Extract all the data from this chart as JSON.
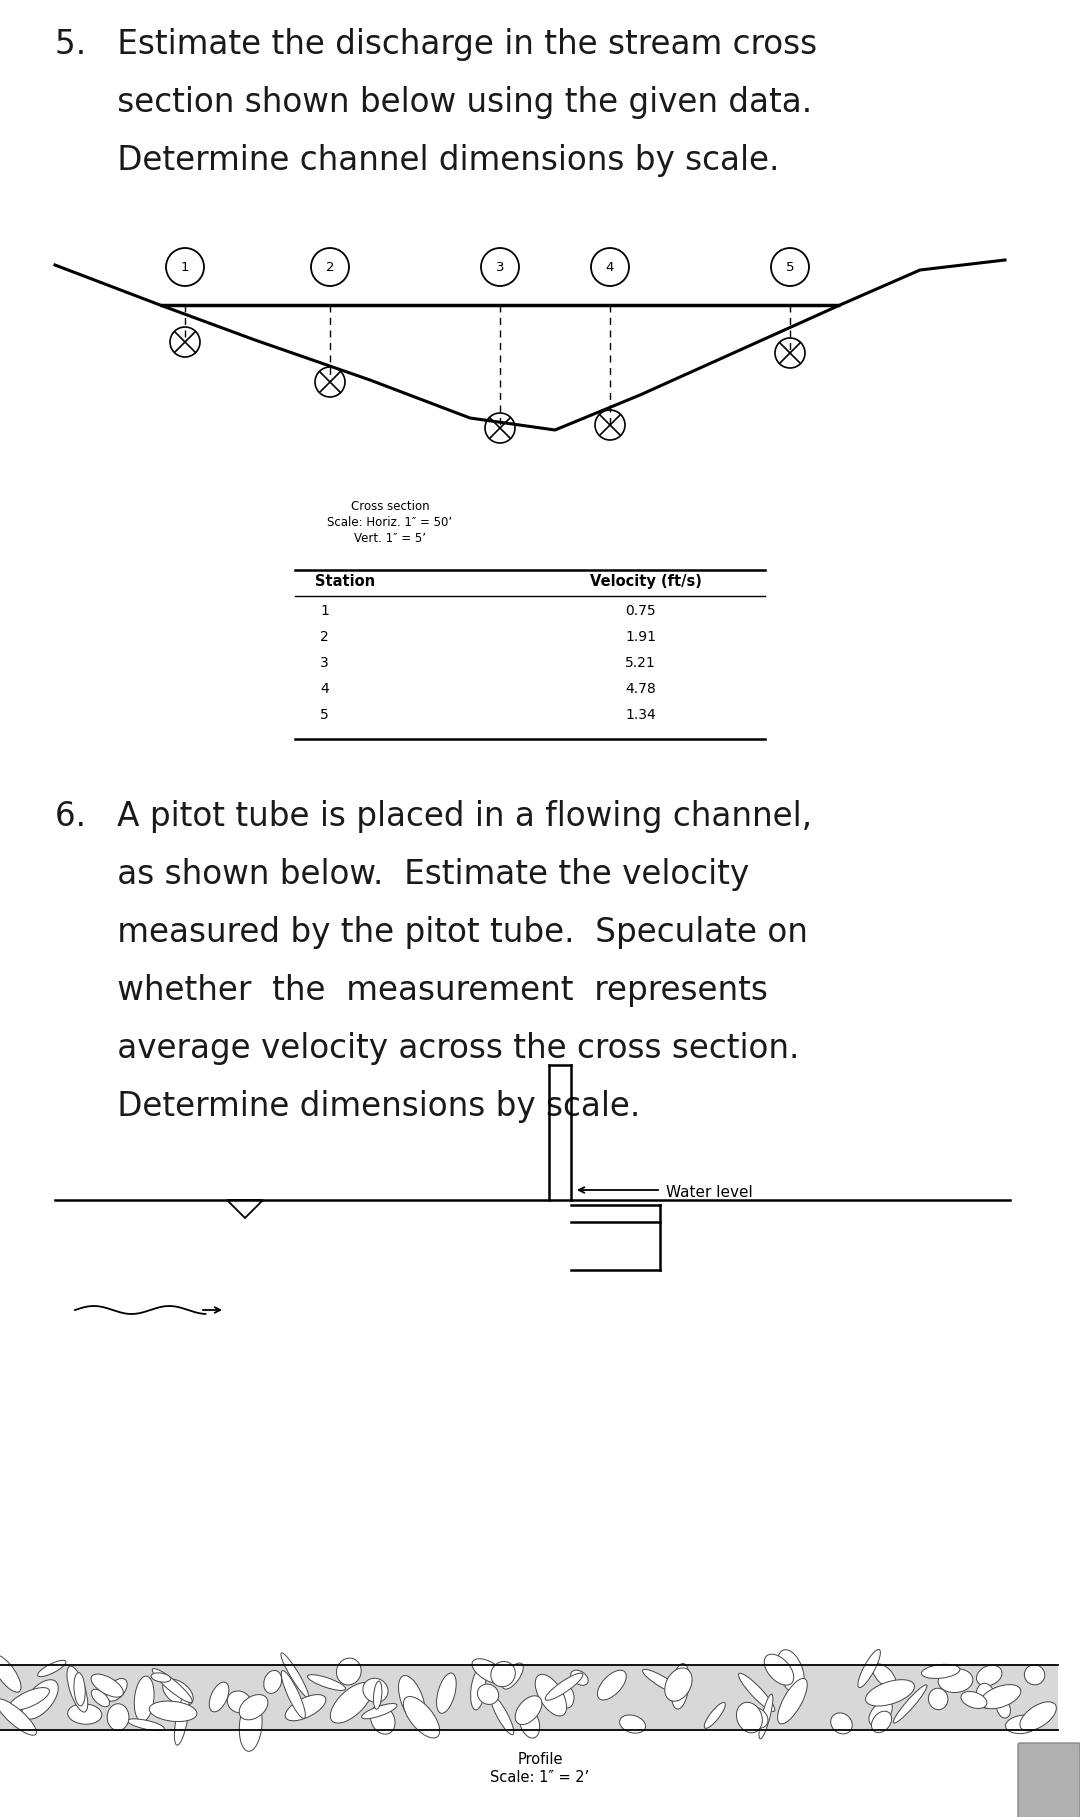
{
  "bg_color": "#ffffff",
  "text_color": "#1a1a1a",
  "p5_line1": "5.   Estimate the discharge in the stream cross",
  "p5_line2": "      section shown below using the given data.",
  "p5_line3": "      Determine channel dimensions by scale.",
  "p6_line1": "6.   A pitot tube is placed in a flowing channel,",
  "p6_line2": "      as shown below.  Estimate the velocity",
  "p6_line3": "      measured by the pitot tube.  Speculate on",
  "p6_line4": "      whether  the  measurement  represents",
  "p6_line5": "      average velocity across the cross section.",
  "p6_line6": "      Determine dimensions by scale.",
  "cross_section_label": "Cross section",
  "scale1_label": "Scale: Horiz. 1″ = 50’",
  "scale2_label": "Vert. 1″ = 5’",
  "col_station": "Station",
  "col_velocity": "Velocity (ft/s)",
  "stations": [
    "1",
    "2",
    "3",
    "4",
    "5"
  ],
  "velocities": [
    "0.75",
    "1.91",
    "5.21",
    "4.78",
    "1.34"
  ],
  "profile_label": "Profile",
  "profile_scale_label": "Scale: 1″ = 2’",
  "water_level_label": "Water level"
}
